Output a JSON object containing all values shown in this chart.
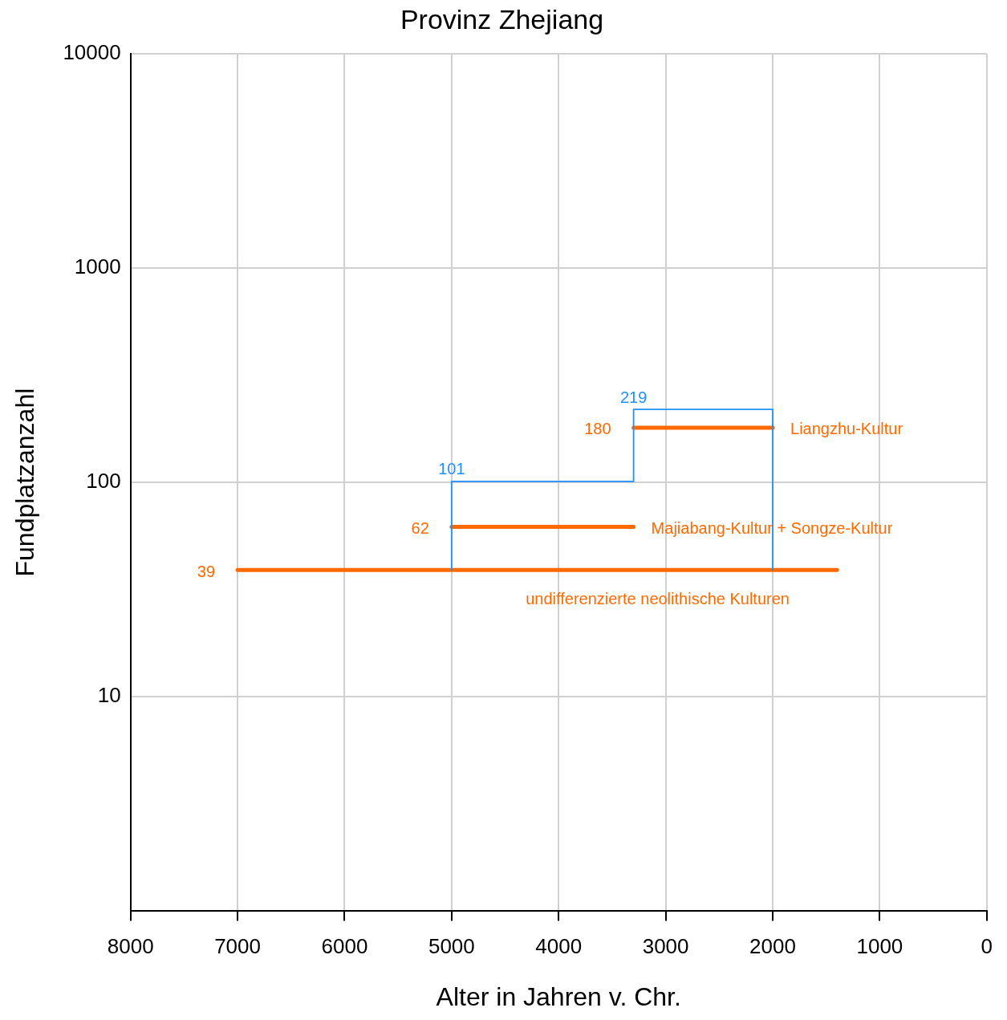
{
  "chart_data": {
    "type": "line",
    "title": "Provinz Zhejiang",
    "xlabel": "Alter in Jahren v. Chr.",
    "ylabel": "Fundplatzanzahl",
    "xlim": [
      8000,
      0
    ],
    "xticks": [
      8000,
      7000,
      6000,
      5000,
      4000,
      3000,
      2000,
      1000,
      0
    ],
    "ylim": [
      1,
      10000
    ],
    "yticks": [
      {
        "value": 1,
        "label": null
      },
      10,
      100,
      1000,
      10000
    ],
    "log": "y",
    "grid": true,
    "legend": false,
    "marker": "none",
    "line_style": "solid",
    "series": [
      {
        "color": "#1e90ff",
        "x": [
          5000,
          5000,
          3300,
          3300,
          2000,
          2000
        ],
        "values": [
          39,
          101,
          101,
          219,
          219,
          39
        ],
        "value_labels": [
          null,
          "101",
          null,
          "219",
          null,
          null
        ]
      },
      {
        "name": "undifferenzierte neolithische Kulturen",
        "color": "#ff6a00",
        "x": [
          7000,
          1400
        ],
        "values": [
          39,
          39
        ],
        "value_labels": [
          "39",
          null
        ]
      },
      {
        "name": "Majiabang-Kultur + Songze-Kultur",
        "color": "#ff6a00",
        "x": [
          5000,
          3300
        ],
        "values": [
          62,
          62
        ],
        "value_labels": [
          "62",
          null
        ]
      },
      {
        "name": "Liangzhu-Kultur",
        "color": "#ff6a00",
        "x": [
          3300,
          2000
        ],
        "values": [
          180,
          180
        ],
        "value_labels": [
          "180",
          null
        ]
      }
    ]
  }
}
